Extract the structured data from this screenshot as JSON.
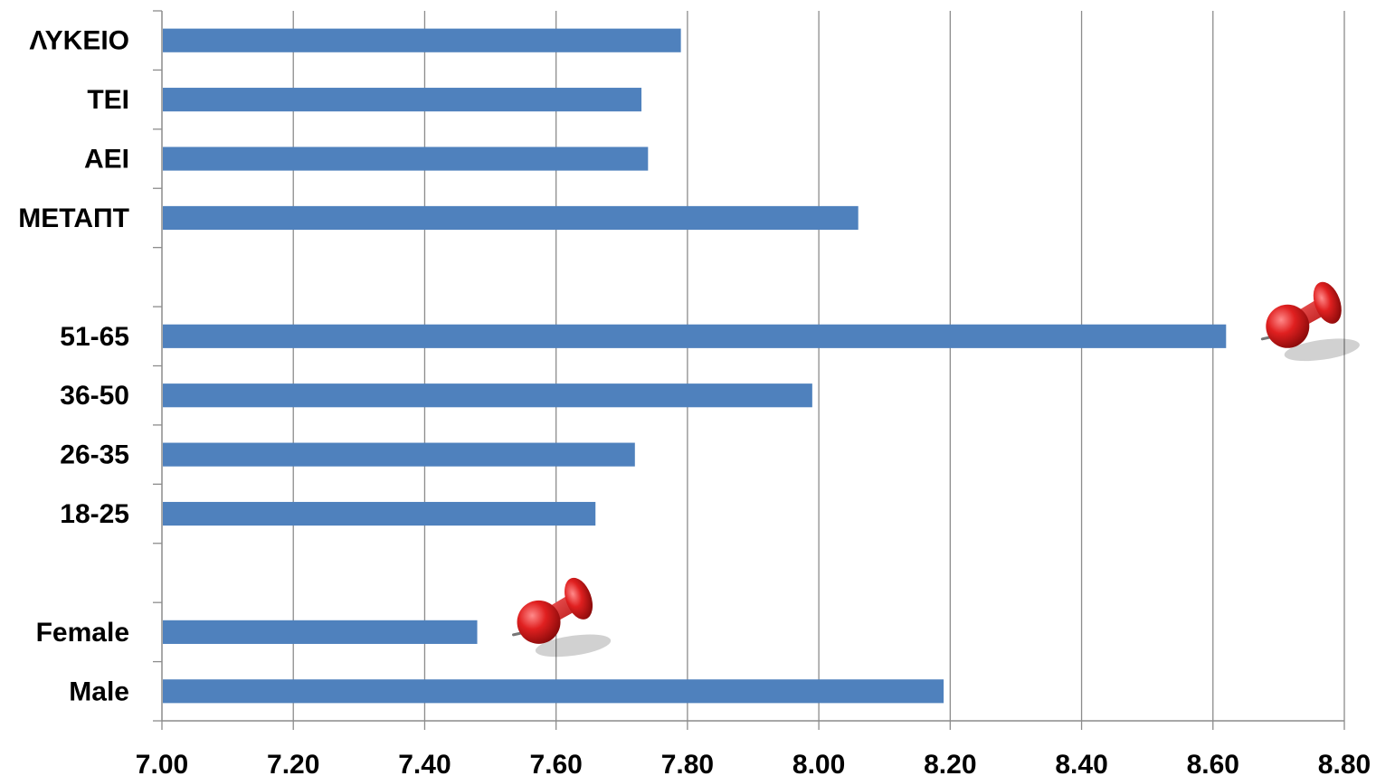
{
  "chart_data": {
    "type": "bar",
    "orientation": "horizontal",
    "categories": [
      "ΛΥΚΕΙΟ",
      "ΤΕΙ",
      "ΑΕΙ",
      "ΜΕΤΑΠΤ",
      "",
      "51-65",
      "36-50",
      "26-35",
      "18-25",
      "",
      "Female",
      "Male"
    ],
    "values": [
      7.79,
      7.73,
      7.74,
      8.06,
      null,
      8.62,
      7.99,
      7.72,
      7.66,
      null,
      7.48,
      8.19
    ],
    "xlim": [
      7.0,
      8.8
    ],
    "xticks": [
      "7.00",
      "7.20",
      "7.40",
      "7.60",
      "7.80",
      "8.00",
      "8.20",
      "8.40",
      "8.60",
      "8.80"
    ],
    "grid": true,
    "bar_color": "#4f81bd",
    "annotations": [
      {
        "type": "pushpin-icon",
        "category": "51-65"
      },
      {
        "type": "pushpin-icon",
        "category": "Female"
      }
    ]
  }
}
